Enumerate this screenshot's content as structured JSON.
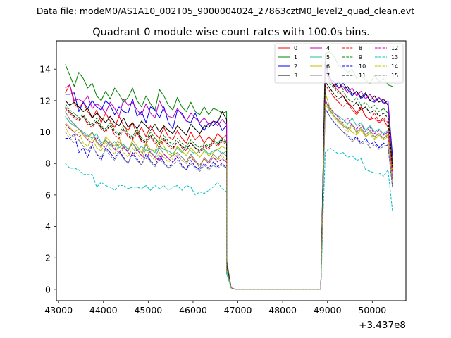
{
  "chart_data": {
    "type": "line",
    "suptitle": "Data file: modeM0/AS1A10_002T05_9000004024_27863cztM0_level2_quad_clean.evt",
    "title": "Quadrant 0 module wise count rates with 100.0s bins.",
    "xlabel": "",
    "ylabel": "",
    "x_offset_label": "+3.437e8",
    "xlim": [
      42950,
      50750
    ],
    "ylim": [
      -0.72,
      15.8
    ],
    "x_ticks": [
      43000,
      44000,
      45000,
      46000,
      47000,
      48000,
      49000,
      50000
    ],
    "x_tick_labels": [
      "43000",
      "44000",
      "45000",
      "46000",
      "47000",
      "48000",
      "49000",
      "50000"
    ],
    "y_ticks": [
      0,
      2,
      4,
      6,
      8,
      10,
      12,
      14
    ],
    "y_tick_labels": [
      "0",
      "2",
      "4",
      "6",
      "8",
      "10",
      "12",
      "14"
    ],
    "grid": false,
    "legend_position": "top-right",
    "segments": {
      "a_start": 43150,
      "a_end": 46750,
      "gap_x": [
        46750,
        46850,
        46950,
        48850
      ],
      "b_start": 48950,
      "b_end": 50450,
      "step": 100
    },
    "series": [
      {
        "name": "0",
        "color": "#ff0000",
        "dash": "solid",
        "a": [
          12.5,
          13.0,
          11.8,
          11.5,
          11.9,
          11.3,
          10.9,
          11.4,
          10.6,
          11.2,
          10.7,
          10.3,
          11.0,
          10.4,
          10.1,
          10.6,
          9.8,
          10.3,
          9.7,
          10.4,
          9.9,
          9.6,
          10.3,
          9.7,
          9.5,
          10.1,
          9.6,
          9.3,
          10.0,
          9.5,
          9.8,
          9.3,
          9.7,
          9.4,
          9.9,
          9.6,
          9.8
        ],
        "drop": [
          1.6,
          0.1,
          0.0
        ],
        "b": [
          14.0,
          13.4,
          12.9,
          12.6,
          12.3,
          11.9,
          11.6,
          11.2,
          11.6,
          11.0,
          10.8,
          10.9,
          10.6,
          10.8,
          10.3,
          7.5
        ]
      },
      {
        "name": "1",
        "color": "#008000",
        "dash": "solid",
        "a": [
          14.3,
          13.6,
          12.9,
          13.8,
          13.4,
          12.8,
          13.1,
          12.3,
          12.0,
          12.6,
          12.1,
          12.8,
          12.4,
          11.9,
          12.2,
          12.8,
          12.0,
          11.6,
          12.3,
          11.8,
          11.4,
          12.7,
          12.3,
          11.7,
          11.4,
          12.2,
          11.6,
          11.3,
          11.9,
          11.3,
          11.1,
          11.6,
          11.1,
          11.5,
          11.4,
          11.2,
          11.3
        ],
        "drop": [
          1.9,
          0.1,
          0.0
        ],
        "b": [
          15.0,
          15.1,
          14.8,
          14.2,
          14.1,
          13.8,
          14.0,
          13.4,
          13.6,
          13.3,
          13.1,
          13.6,
          13.2,
          13.4,
          13.0,
          12.9
        ]
      },
      {
        "name": "2",
        "color": "#0000ff",
        "dash": "solid",
        "a": [
          12.4,
          12.4,
          12.5,
          11.3,
          11.9,
          11.5,
          12.0,
          11.6,
          11.4,
          12.0,
          11.7,
          11.1,
          11.6,
          11.3,
          11.2,
          12.1,
          11.0,
          11.3,
          10.6,
          11.6,
          11.4,
          10.9,
          11.6,
          10.6,
          10.2,
          11.4,
          11.2,
          10.7,
          10.6,
          11.2,
          10.5,
          10.1,
          10.6,
          10.4,
          10.7,
          10.1,
          10.4
        ],
        "drop": [
          1.6,
          0.1,
          0.0
        ],
        "b": [
          14.3,
          13.4,
          13.2,
          12.8,
          13.1,
          12.7,
          12.3,
          12.6,
          12.1,
          12.4,
          12.0,
          11.9,
          12.2,
          11.8,
          12.0,
          8.5
        ]
      },
      {
        "name": "3",
        "color": "#000000",
        "dash": "solid",
        "a": [
          12.0,
          11.7,
          11.9,
          11.6,
          11.3,
          11.5,
          10.9,
          11.2,
          10.9,
          10.6,
          11.0,
          10.6,
          10.4,
          10.9,
          10.3,
          10.6,
          10.2,
          10.7,
          10.4,
          10.1,
          10.5,
          10.0,
          10.4,
          10.1,
          9.9,
          10.4,
          10.1,
          9.8,
          10.5,
          10.2,
          9.9,
          10.4,
          10.3,
          10.7,
          10.6,
          11.3,
          10.8
        ],
        "drop": [
          1.6,
          0.1,
          0.0
        ],
        "b": [
          14.5,
          13.5,
          12.9,
          13.2,
          12.7,
          12.9,
          12.4,
          12.6,
          12.2,
          12.5,
          12.0,
          12.3,
          11.9,
          12.1,
          11.7,
          8.0
        ]
      },
      {
        "name": "4",
        "color": "#bf00bf",
        "dash": "solid",
        "a": [
          12.8,
          13.0,
          12.0,
          12.1,
          11.9,
          12.3,
          11.5,
          11.8,
          11.6,
          11.2,
          11.9,
          11.5,
          11.0,
          12.1,
          11.7,
          11.9,
          11.4,
          11.1,
          11.8,
          11.2,
          10.9,
          12.0,
          11.4,
          11.0,
          10.9,
          11.5,
          11.1,
          10.7,
          11.2,
          10.9,
          10.6,
          10.9,
          10.5,
          10.7,
          10.4,
          10.8,
          10.5
        ],
        "drop": [
          1.6,
          0.1,
          0.0
        ],
        "b": [
          14.0,
          13.2,
          13.0,
          12.8,
          12.9,
          12.5,
          12.8,
          12.3,
          12.6,
          12.1,
          12.4,
          12.0,
          12.2,
          11.9,
          11.8,
          8.0
        ]
      },
      {
        "name": "5",
        "color": "#1fbf9f",
        "dash": "solid",
        "a": [
          11.0,
          10.6,
          10.4,
          10.2,
          10.0,
          9.8,
          9.6,
          9.9,
          9.3,
          9.5,
          9.1,
          9.4,
          9.0,
          9.2,
          8.9,
          9.3,
          8.8,
          9.1,
          8.8,
          8.9,
          8.7,
          9.1,
          8.9,
          8.8,
          8.6,
          9.0,
          8.7,
          9.1,
          8.8,
          8.6,
          8.8,
          8.9,
          8.6,
          8.8,
          8.9,
          8.6,
          8.8
        ],
        "drop": [
          1.4,
          0.1,
          0.0
        ],
        "b": [
          12.0,
          11.5,
          11.2,
          11.0,
          10.8,
          10.5,
          10.9,
          10.4,
          10.6,
          10.1,
          10.4,
          10.0,
          10.2,
          9.9,
          10.1,
          7.0
        ]
      },
      {
        "name": "6",
        "color": "#bfbf00",
        "dash": "solid",
        "a": [
          10.6,
          10.3,
          10.0,
          10.2,
          9.8,
          9.5,
          10.0,
          9.3,
          9.0,
          9.7,
          9.4,
          9.1,
          9.6,
          9.0,
          8.8,
          9.5,
          9.1,
          8.7,
          9.3,
          8.9,
          8.8,
          9.5,
          9.1,
          8.6,
          8.5,
          9.1,
          8.8,
          8.5,
          9.0,
          8.7,
          8.4,
          8.8,
          8.5,
          8.7,
          8.9,
          9.1,
          8.9
        ],
        "drop": [
          1.5,
          0.1,
          0.0
        ],
        "b": [
          12.5,
          11.6,
          11.0,
          10.8,
          10.5,
          10.3,
          10.0,
          9.8,
          10.2,
          9.7,
          9.9,
          9.5,
          9.8,
          9.6,
          9.9,
          7.5
        ]
      },
      {
        "name": "7",
        "color": "#808080",
        "dash": "solid",
        "a": [
          11.3,
          10.8,
          10.5,
          10.2,
          9.9,
          9.7,
          10.0,
          9.4,
          9.1,
          9.5,
          9.2,
          8.9,
          9.4,
          9.0,
          8.8,
          9.3,
          8.9,
          8.5,
          9.2,
          8.7,
          8.4,
          9.0,
          8.6,
          8.3,
          8.5,
          8.7,
          8.4,
          8.1,
          8.6,
          8.2,
          7.7,
          8.4,
          8.1,
          8.6,
          8.3,
          8.7,
          8.5
        ],
        "drop": [
          1.3,
          0.1,
          0.0
        ],
        "b": [
          12.0,
          11.4,
          11.0,
          10.7,
          10.4,
          10.2,
          10.5,
          10.0,
          10.3,
          9.8,
          10.1,
          9.7,
          9.9,
          9.6,
          9.8,
          7.0
        ]
      },
      {
        "name": "8",
        "color": "#ff0000",
        "dash": "dashed",
        "a": [
          11.5,
          11.2,
          10.9,
          10.7,
          11.0,
          10.5,
          10.3,
          10.6,
          10.2,
          10.0,
          10.4,
          9.8,
          9.6,
          10.1,
          9.7,
          9.5,
          9.9,
          9.4,
          9.3,
          9.7,
          9.3,
          9.0,
          9.5,
          9.1,
          8.9,
          9.4,
          9.0,
          8.8,
          9.3,
          9.0,
          8.7,
          9.1,
          8.9,
          9.3,
          9.1,
          9.4,
          9.2
        ],
        "drop": [
          1.5,
          0.1,
          0.0
        ],
        "b": [
          13.0,
          12.6,
          12.2,
          11.9,
          11.6,
          11.9,
          11.4,
          11.1,
          11.5,
          11.0,
          10.8,
          11.2,
          10.7,
          10.9,
          10.6,
          7.5
        ]
      },
      {
        "name": "9",
        "color": "#008000",
        "dash": "dashed",
        "a": [
          11.8,
          11.4,
          11.2,
          10.9,
          11.1,
          10.7,
          10.5,
          10.9,
          10.4,
          10.2,
          10.6,
          10.1,
          9.9,
          10.4,
          9.9,
          9.7,
          10.2,
          9.6,
          9.5,
          10.0,
          9.6,
          9.3,
          9.8,
          9.4,
          9.2,
          9.6,
          9.3,
          9.1,
          9.5,
          9.2,
          9.0,
          9.3,
          9.1,
          9.5,
          9.3,
          9.6,
          9.4
        ],
        "drop": [
          1.5,
          0.1,
          0.0
        ],
        "b": [
          13.5,
          13.1,
          12.8,
          12.4,
          12.6,
          12.1,
          11.9,
          12.2,
          11.7,
          11.9,
          11.5,
          11.7,
          11.3,
          11.5,
          11.2,
          8.0
        ]
      },
      {
        "name": "10",
        "color": "#0000ff",
        "dash": "dashed",
        "a": [
          9.6,
          9.6,
          9.9,
          8.7,
          9.0,
          8.4,
          9.2,
          8.6,
          8.2,
          9.0,
          8.7,
          8.3,
          8.8,
          8.4,
          8.0,
          8.7,
          8.3,
          7.9,
          8.6,
          8.2,
          7.9,
          8.5,
          8.1,
          7.7,
          8.1,
          8.4,
          7.9,
          7.6,
          8.2,
          7.8,
          7.6,
          8.0,
          7.7,
          8.1,
          7.8,
          8.0,
          7.7
        ],
        "drop": [
          1.2,
          0.1,
          0.0
        ],
        "b": [
          11.5,
          11.0,
          10.6,
          10.3,
          10.0,
          9.8,
          9.5,
          9.7,
          9.3,
          9.6,
          9.2,
          9.4,
          9.0,
          9.3,
          9.1,
          6.5
        ]
      },
      {
        "name": "11",
        "color": "#000000",
        "dash": "dashed",
        "a": [
          11.6,
          11.3,
          11.0,
          10.8,
          11.0,
          10.6,
          10.4,
          10.7,
          10.3,
          10.1,
          10.4,
          10.0,
          9.8,
          10.2,
          9.8,
          9.6,
          10.0,
          9.5,
          9.4,
          9.8,
          9.4,
          9.2,
          9.6,
          9.2,
          9.0,
          9.4,
          9.1,
          8.9,
          9.3,
          9.0,
          8.8,
          9.2,
          9.0,
          9.4,
          9.2,
          9.5,
          9.3
        ],
        "drop": [
          1.5,
          0.1,
          0.0
        ],
        "b": [
          13.2,
          12.8,
          12.4,
          12.1,
          12.3,
          11.8,
          11.6,
          11.9,
          11.4,
          11.6,
          11.2,
          11.4,
          11.0,
          11.2,
          10.9,
          7.8
        ]
      },
      {
        "name": "12",
        "color": "#bf00bf",
        "dash": "dashed",
        "a": [
          10.5,
          10.2,
          10.0,
          9.7,
          9.9,
          9.5,
          9.3,
          9.7,
          9.2,
          9.0,
          9.4,
          8.9,
          8.7,
          9.1,
          8.7,
          8.5,
          8.9,
          8.5,
          8.3,
          8.8,
          8.4,
          8.2,
          8.6,
          8.3,
          8.1,
          8.5,
          8.2,
          8.0,
          8.4,
          8.1,
          7.9,
          8.3,
          8.0,
          8.4,
          8.1,
          8.3,
          8.1
        ],
        "drop": [
          1.3,
          0.1,
          0.0
        ],
        "b": [
          12.0,
          11.6,
          11.2,
          10.9,
          10.6,
          10.9,
          10.4,
          10.2,
          10.5,
          10.0,
          10.3,
          9.9,
          10.1,
          9.8,
          10.0,
          7.0
        ]
      },
      {
        "name": "13",
        "color": "#00bfbf",
        "dash": "dashed",
        "a": [
          8.0,
          7.7,
          7.7,
          7.6,
          7.3,
          7.3,
          7.3,
          6.5,
          6.8,
          6.6,
          6.5,
          6.3,
          6.6,
          6.6,
          6.4,
          6.5,
          6.5,
          6.4,
          6.6,
          6.3,
          6.6,
          6.4,
          6.6,
          6.3,
          6.5,
          6.6,
          6.3,
          6.6,
          6.5,
          6.0,
          6.2,
          6.1,
          6.3,
          6.5,
          6.8,
          6.4,
          6.2
        ],
        "drop": [
          1.0,
          0.1,
          0.0
        ],
        "b": [
          8.7,
          9.0,
          8.8,
          8.6,
          8.7,
          8.4,
          8.5,
          8.2,
          8.3,
          7.6,
          7.5,
          7.4,
          7.4,
          7.2,
          7.6,
          5.0
        ]
      },
      {
        "name": "14",
        "color": "#bfbf00",
        "dash": "dashed",
        "a": [
          10.3,
          9.8,
          9.7,
          10.0,
          9.3,
          9.1,
          9.6,
          9.0,
          8.8,
          9.4,
          8.9,
          8.6,
          9.2,
          8.7,
          8.4,
          9.0,
          8.6,
          8.3,
          8.9,
          8.5,
          8.2,
          8.7,
          8.4,
          8.1,
          8.3,
          8.6,
          8.2,
          8.0,
          8.5,
          8.1,
          7.9,
          8.3,
          8.0,
          8.4,
          8.2,
          8.5,
          8.2
        ],
        "drop": [
          1.3,
          0.1,
          0.0
        ],
        "b": [
          11.8,
          11.3,
          10.9,
          10.6,
          10.3,
          10.0,
          10.4,
          9.9,
          10.1,
          9.7,
          10.0,
          9.6,
          9.8,
          9.5,
          9.7,
          6.8
        ]
      },
      {
        "name": "15",
        "color": "#808080",
        "dash": "dashed",
        "a": [
          10.0,
          9.6,
          9.3,
          9.5,
          9.1,
          8.8,
          9.2,
          8.6,
          8.4,
          8.9,
          8.5,
          8.2,
          8.7,
          8.3,
          8.0,
          8.6,
          8.2,
          7.9,
          8.5,
          8.1,
          7.8,
          8.3,
          8.0,
          7.7,
          7.9,
          8.2,
          7.8,
          7.6,
          8.0,
          7.7,
          7.5,
          7.9,
          7.6,
          7.9,
          7.7,
          7.9,
          7.7
        ],
        "drop": [
          1.2,
          0.1,
          0.0
        ],
        "b": [
          11.5,
          11.0,
          10.6,
          10.3,
          10.0,
          9.7,
          9.4,
          9.6,
          9.2,
          9.4,
          9.0,
          9.2,
          8.9,
          9.1,
          9.2,
          6.5
        ]
      }
    ]
  }
}
